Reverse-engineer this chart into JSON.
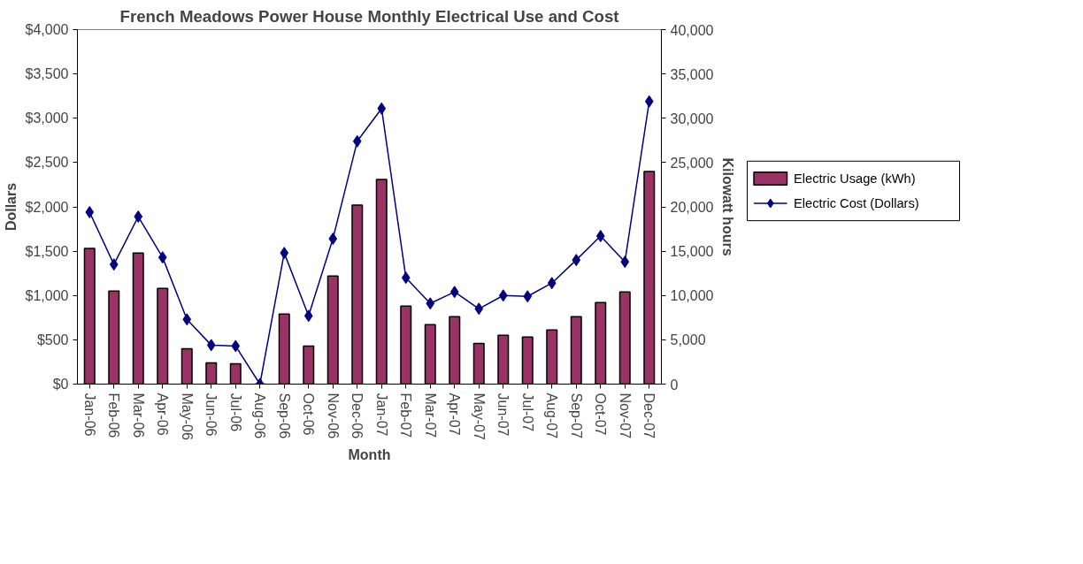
{
  "chart_data": {
    "type": "bar",
    "title": "French Meadows Power House Monthly Electrical Use and Cost",
    "xlabel": "Month",
    "ylabel": "Dollars",
    "y2label": "Kilowatt hours",
    "categories": [
      "Jan-06",
      "Feb-06",
      "Mar-06",
      "Apr-06",
      "May-06",
      "Jun-06",
      "Jul-06",
      "Aug-06",
      "Sep-06",
      "Oct-06",
      "Nov-06",
      "Dec-06",
      "Jan-07",
      "Feb-07",
      "Mar-07",
      "Apr-07",
      "May-07",
      "Jun-07",
      "Jul-07",
      "Aug-07",
      "Sep-07",
      "Oct-07",
      "Nov-07",
      "Dec-07"
    ],
    "series": [
      {
        "name": "Electric Usage (kWh)",
        "axis": "y2",
        "color": "#993366",
        "values": [
          15300,
          10500,
          14800,
          10800,
          4000,
          2400,
          2300,
          null,
          7900,
          4300,
          12200,
          20200,
          23100,
          8800,
          6700,
          7600,
          4600,
          5500,
          5300,
          6100,
          7600,
          9200,
          10400,
          24000
        ]
      },
      {
        "name": "Electric Cost (Dollars)",
        "type": "line",
        "color": "#000080",
        "marker": "diamond",
        "values": [
          1940,
          1350,
          1890,
          1430,
          730,
          440,
          430,
          0,
          1480,
          770,
          1640,
          2740,
          3110,
          1200,
          910,
          1040,
          850,
          1000,
          990,
          1140,
          1400,
          1670,
          1380,
          3190
        ]
      }
    ],
    "ylim": [
      0,
      4000
    ],
    "yticks": [
      {
        "value": 0,
        "label": "$0"
      },
      {
        "value": 500,
        "label": "$500"
      },
      {
        "value": 1000,
        "label": "$1,000"
      },
      {
        "value": 1500,
        "label": "$1,500"
      },
      {
        "value": 2000,
        "label": "$2,000"
      },
      {
        "value": 2500,
        "label": "$2,500"
      },
      {
        "value": 3000,
        "label": "$3,000"
      },
      {
        "value": 3500,
        "label": "$3,500"
      },
      {
        "value": 4000,
        "label": "$4,000"
      }
    ],
    "y2lim": [
      0,
      40000
    ],
    "y2ticks": [
      0,
      {
        "value": 5000,
        "label": "5,000"
      },
      {
        "value": 10000,
        "label": "10,000"
      },
      {
        "value": 15000,
        "label": "15,000"
      },
      {
        "value": 20000,
        "label": "20,000"
      },
      {
        "value": 25000,
        "label": "25,000"
      },
      {
        "value": 30000,
        "label": "30,000"
      },
      {
        "value": 35000,
        "label": "35,000"
      },
      {
        "value": 40000,
        "label": "40,000"
      }
    ],
    "grid": false,
    "legend": "right"
  }
}
